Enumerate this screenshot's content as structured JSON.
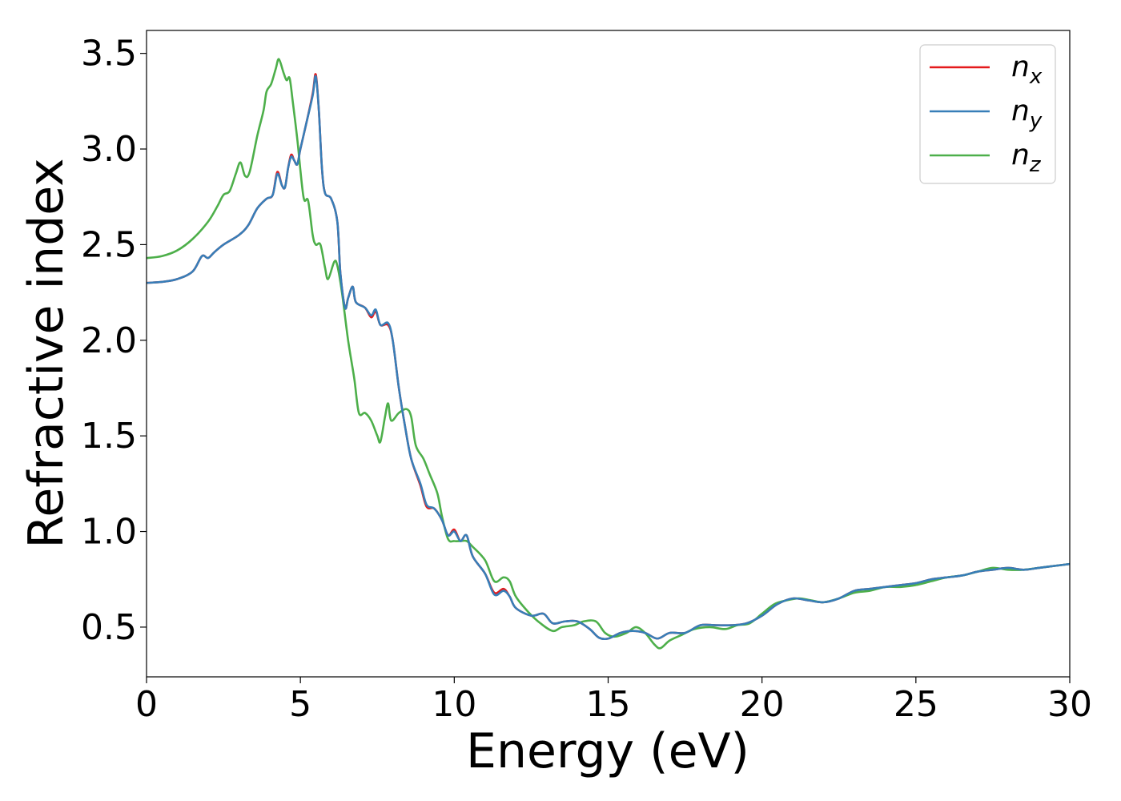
{
  "chart_data": {
    "type": "line",
    "title": "",
    "xlabel": "Energy (eV)",
    "ylabel": "Refractive index",
    "xlim": [
      0,
      30
    ],
    "ylim": [
      0.24,
      3.62
    ],
    "xticks": [
      0,
      5,
      10,
      15,
      20,
      25,
      30
    ],
    "xtick_labels": [
      "0",
      "5",
      "10",
      "15",
      "20",
      "25",
      "30"
    ],
    "yticks": [
      0.5,
      1.0,
      1.5,
      2.0,
      2.5,
      3.0,
      3.5
    ],
    "ytick_labels": [
      "0.5",
      "1.0",
      "1.5",
      "2.0",
      "2.5",
      "3.0",
      "3.5"
    ],
    "grid": false,
    "legend_position": "top-right",
    "series": [
      {
        "name": "n",
        "subscript": "x",
        "color": "#e41a1c",
        "points": [
          [
            0,
            2.3
          ],
          [
            0.5,
            2.305
          ],
          [
            1.0,
            2.32
          ],
          [
            1.5,
            2.36
          ],
          [
            1.8,
            2.44
          ],
          [
            2.0,
            2.43
          ],
          [
            2.2,
            2.46
          ],
          [
            2.5,
            2.5
          ],
          [
            3.0,
            2.55
          ],
          [
            3.3,
            2.6
          ],
          [
            3.6,
            2.69
          ],
          [
            3.9,
            2.74
          ],
          [
            4.1,
            2.76
          ],
          [
            4.25,
            2.88
          ],
          [
            4.4,
            2.81
          ],
          [
            4.5,
            2.8
          ],
          [
            4.6,
            2.9
          ],
          [
            4.7,
            2.97
          ],
          [
            4.8,
            2.94
          ],
          [
            4.9,
            2.92
          ],
          [
            5.0,
            3.0
          ],
          [
            5.2,
            3.14
          ],
          [
            5.4,
            3.29
          ],
          [
            5.5,
            3.39
          ],
          [
            5.6,
            3.2
          ],
          [
            5.7,
            2.9
          ],
          [
            5.8,
            2.77
          ],
          [
            6.0,
            2.74
          ],
          [
            6.2,
            2.62
          ],
          [
            6.3,
            2.35
          ],
          [
            6.45,
            2.17
          ],
          [
            6.55,
            2.22
          ],
          [
            6.7,
            2.28
          ],
          [
            6.8,
            2.2
          ],
          [
            7.1,
            2.17
          ],
          [
            7.3,
            2.12
          ],
          [
            7.45,
            2.15
          ],
          [
            7.6,
            2.08
          ],
          [
            7.85,
            2.08
          ],
          [
            8.0,
            2.0
          ],
          [
            8.2,
            1.75
          ],
          [
            8.4,
            1.55
          ],
          [
            8.6,
            1.38
          ],
          [
            8.9,
            1.24
          ],
          [
            9.1,
            1.13
          ],
          [
            9.35,
            1.12
          ],
          [
            9.6,
            1.06
          ],
          [
            9.8,
            0.98
          ],
          [
            10.0,
            1.01
          ],
          [
            10.2,
            0.95
          ],
          [
            10.4,
            0.98
          ],
          [
            10.6,
            0.87
          ],
          [
            11.0,
            0.78
          ],
          [
            11.3,
            0.68
          ],
          [
            11.6,
            0.7
          ],
          [
            11.8,
            0.66
          ],
          [
            12.0,
            0.6
          ],
          [
            12.5,
            0.56
          ],
          [
            12.9,
            0.57
          ],
          [
            13.2,
            0.52
          ],
          [
            13.6,
            0.53
          ],
          [
            14.0,
            0.53
          ],
          [
            14.4,
            0.49
          ],
          [
            14.7,
            0.445
          ],
          [
            15.0,
            0.44
          ],
          [
            15.4,
            0.47
          ],
          [
            15.8,
            0.48
          ],
          [
            16.2,
            0.47
          ],
          [
            16.6,
            0.44
          ],
          [
            17.0,
            0.47
          ],
          [
            17.5,
            0.47
          ],
          [
            18.0,
            0.51
          ],
          [
            18.5,
            0.51
          ],
          [
            19.0,
            0.51
          ],
          [
            19.5,
            0.52
          ],
          [
            20.0,
            0.56
          ],
          [
            20.5,
            0.62
          ],
          [
            21.0,
            0.65
          ],
          [
            21.5,
            0.64
          ],
          [
            22.0,
            0.63
          ],
          [
            22.5,
            0.65
          ],
          [
            23.0,
            0.69
          ],
          [
            23.5,
            0.7
          ],
          [
            24.0,
            0.71
          ],
          [
            24.5,
            0.72
          ],
          [
            25.0,
            0.73
          ],
          [
            25.5,
            0.75
          ],
          [
            26.0,
            0.76
          ],
          [
            26.5,
            0.77
          ],
          [
            27.0,
            0.79
          ],
          [
            27.5,
            0.8
          ],
          [
            28.0,
            0.81
          ],
          [
            28.5,
            0.8
          ],
          [
            29.0,
            0.81
          ],
          [
            29.5,
            0.82
          ],
          [
            30.0,
            0.83
          ]
        ]
      },
      {
        "name": "n",
        "subscript": "y",
        "color": "#377eb8",
        "points": [
          [
            0,
            2.3
          ],
          [
            0.5,
            2.305
          ],
          [
            1.0,
            2.32
          ],
          [
            1.5,
            2.36
          ],
          [
            1.8,
            2.44
          ],
          [
            2.0,
            2.43
          ],
          [
            2.2,
            2.46
          ],
          [
            2.5,
            2.5
          ],
          [
            3.0,
            2.55
          ],
          [
            3.3,
            2.6
          ],
          [
            3.6,
            2.69
          ],
          [
            3.9,
            2.74
          ],
          [
            4.1,
            2.76
          ],
          [
            4.25,
            2.87
          ],
          [
            4.4,
            2.81
          ],
          [
            4.5,
            2.8
          ],
          [
            4.6,
            2.9
          ],
          [
            4.7,
            2.96
          ],
          [
            4.8,
            2.94
          ],
          [
            4.9,
            2.92
          ],
          [
            5.0,
            3.0
          ],
          [
            5.2,
            3.14
          ],
          [
            5.4,
            3.28
          ],
          [
            5.5,
            3.38
          ],
          [
            5.6,
            3.2
          ],
          [
            5.7,
            2.9
          ],
          [
            5.8,
            2.77
          ],
          [
            6.0,
            2.74
          ],
          [
            6.2,
            2.62
          ],
          [
            6.3,
            2.35
          ],
          [
            6.45,
            2.17
          ],
          [
            6.55,
            2.22
          ],
          [
            6.7,
            2.28
          ],
          [
            6.8,
            2.2
          ],
          [
            7.1,
            2.17
          ],
          [
            7.3,
            2.13
          ],
          [
            7.45,
            2.16
          ],
          [
            7.6,
            2.08
          ],
          [
            7.85,
            2.09
          ],
          [
            8.0,
            2.0
          ],
          [
            8.2,
            1.75
          ],
          [
            8.4,
            1.55
          ],
          [
            8.6,
            1.38
          ],
          [
            8.9,
            1.25
          ],
          [
            9.1,
            1.14
          ],
          [
            9.35,
            1.12
          ],
          [
            9.6,
            1.06
          ],
          [
            9.8,
            0.98
          ],
          [
            10.0,
            1.0
          ],
          [
            10.2,
            0.95
          ],
          [
            10.4,
            0.98
          ],
          [
            10.6,
            0.87
          ],
          [
            11.0,
            0.78
          ],
          [
            11.3,
            0.67
          ],
          [
            11.6,
            0.69
          ],
          [
            11.8,
            0.66
          ],
          [
            12.0,
            0.6
          ],
          [
            12.5,
            0.56
          ],
          [
            12.9,
            0.57
          ],
          [
            13.2,
            0.52
          ],
          [
            13.6,
            0.53
          ],
          [
            14.0,
            0.53
          ],
          [
            14.4,
            0.49
          ],
          [
            14.7,
            0.445
          ],
          [
            15.0,
            0.44
          ],
          [
            15.4,
            0.47
          ],
          [
            15.8,
            0.48
          ],
          [
            16.2,
            0.47
          ],
          [
            16.6,
            0.44
          ],
          [
            17.0,
            0.47
          ],
          [
            17.5,
            0.47
          ],
          [
            18.0,
            0.51
          ],
          [
            18.5,
            0.51
          ],
          [
            19.0,
            0.51
          ],
          [
            19.5,
            0.52
          ],
          [
            20.0,
            0.56
          ],
          [
            20.5,
            0.62
          ],
          [
            21.0,
            0.65
          ],
          [
            21.5,
            0.64
          ],
          [
            22.0,
            0.63
          ],
          [
            22.5,
            0.65
          ],
          [
            23.0,
            0.69
          ],
          [
            23.5,
            0.7
          ],
          [
            24.0,
            0.71
          ],
          [
            24.5,
            0.72
          ],
          [
            25.0,
            0.73
          ],
          [
            25.5,
            0.75
          ],
          [
            26.0,
            0.76
          ],
          [
            26.5,
            0.77
          ],
          [
            27.0,
            0.79
          ],
          [
            27.5,
            0.8
          ],
          [
            28.0,
            0.81
          ],
          [
            28.5,
            0.8
          ],
          [
            29.0,
            0.81
          ],
          [
            29.5,
            0.82
          ],
          [
            30.0,
            0.83
          ]
        ]
      },
      {
        "name": "n",
        "subscript": "z",
        "color": "#4daf4a",
        "points": [
          [
            0,
            2.43
          ],
          [
            0.5,
            2.44
          ],
          [
            1.0,
            2.47
          ],
          [
            1.5,
            2.53
          ],
          [
            2.0,
            2.62
          ],
          [
            2.3,
            2.7
          ],
          [
            2.5,
            2.76
          ],
          [
            2.7,
            2.78
          ],
          [
            2.9,
            2.87
          ],
          [
            3.05,
            2.93
          ],
          [
            3.2,
            2.86
          ],
          [
            3.35,
            2.88
          ],
          [
            3.6,
            3.07
          ],
          [
            3.8,
            3.2
          ],
          [
            3.9,
            3.3
          ],
          [
            4.05,
            3.34
          ],
          [
            4.2,
            3.42
          ],
          [
            4.3,
            3.47
          ],
          [
            4.45,
            3.4
          ],
          [
            4.55,
            3.36
          ],
          [
            4.65,
            3.37
          ],
          [
            4.75,
            3.25
          ],
          [
            4.9,
            3.05
          ],
          [
            5.1,
            2.75
          ],
          [
            5.25,
            2.73
          ],
          [
            5.4,
            2.55
          ],
          [
            5.5,
            2.5
          ],
          [
            5.65,
            2.5
          ],
          [
            5.8,
            2.38
          ],
          [
            5.9,
            2.32
          ],
          [
            6.1,
            2.41
          ],
          [
            6.2,
            2.39
          ],
          [
            6.35,
            2.25
          ],
          [
            6.55,
            2.0
          ],
          [
            6.75,
            1.8
          ],
          [
            6.9,
            1.62
          ],
          [
            7.1,
            1.62
          ],
          [
            7.3,
            1.58
          ],
          [
            7.5,
            1.5
          ],
          [
            7.6,
            1.47
          ],
          [
            7.75,
            1.6
          ],
          [
            7.85,
            1.67
          ],
          [
            7.95,
            1.58
          ],
          [
            8.2,
            1.62
          ],
          [
            8.45,
            1.64
          ],
          [
            8.6,
            1.6
          ],
          [
            8.75,
            1.45
          ],
          [
            9.0,
            1.38
          ],
          [
            9.2,
            1.3
          ],
          [
            9.45,
            1.2
          ],
          [
            9.6,
            1.08
          ],
          [
            9.8,
            0.96
          ],
          [
            10.0,
            0.95
          ],
          [
            10.2,
            0.95
          ],
          [
            10.4,
            0.95
          ],
          [
            10.6,
            0.92
          ],
          [
            11.0,
            0.85
          ],
          [
            11.3,
            0.74
          ],
          [
            11.6,
            0.76
          ],
          [
            11.8,
            0.74
          ],
          [
            12.0,
            0.66
          ],
          [
            12.4,
            0.58
          ],
          [
            12.8,
            0.52
          ],
          [
            13.2,
            0.48
          ],
          [
            13.5,
            0.5
          ],
          [
            13.9,
            0.51
          ],
          [
            14.2,
            0.53
          ],
          [
            14.6,
            0.53
          ],
          [
            14.9,
            0.47
          ],
          [
            15.2,
            0.45
          ],
          [
            15.6,
            0.47
          ],
          [
            15.9,
            0.5
          ],
          [
            16.2,
            0.47
          ],
          [
            16.5,
            0.41
          ],
          [
            16.7,
            0.39
          ],
          [
            17.0,
            0.43
          ],
          [
            17.4,
            0.46
          ],
          [
            17.8,
            0.49
          ],
          [
            18.3,
            0.5
          ],
          [
            18.8,
            0.49
          ],
          [
            19.2,
            0.51
          ],
          [
            19.6,
            0.52
          ],
          [
            20.0,
            0.57
          ],
          [
            20.4,
            0.62
          ],
          [
            20.8,
            0.64
          ],
          [
            21.2,
            0.65
          ],
          [
            21.6,
            0.64
          ],
          [
            22.0,
            0.63
          ],
          [
            22.5,
            0.65
          ],
          [
            23.0,
            0.68
          ],
          [
            23.5,
            0.69
          ],
          [
            24.0,
            0.71
          ],
          [
            24.5,
            0.71
          ],
          [
            25.0,
            0.72
          ],
          [
            25.5,
            0.74
          ],
          [
            26.0,
            0.76
          ],
          [
            26.5,
            0.77
          ],
          [
            27.0,
            0.79
          ],
          [
            27.5,
            0.81
          ],
          [
            28.0,
            0.8
          ],
          [
            28.5,
            0.8
          ],
          [
            29.0,
            0.81
          ],
          [
            29.5,
            0.82
          ],
          [
            30.0,
            0.83
          ]
        ]
      }
    ]
  }
}
